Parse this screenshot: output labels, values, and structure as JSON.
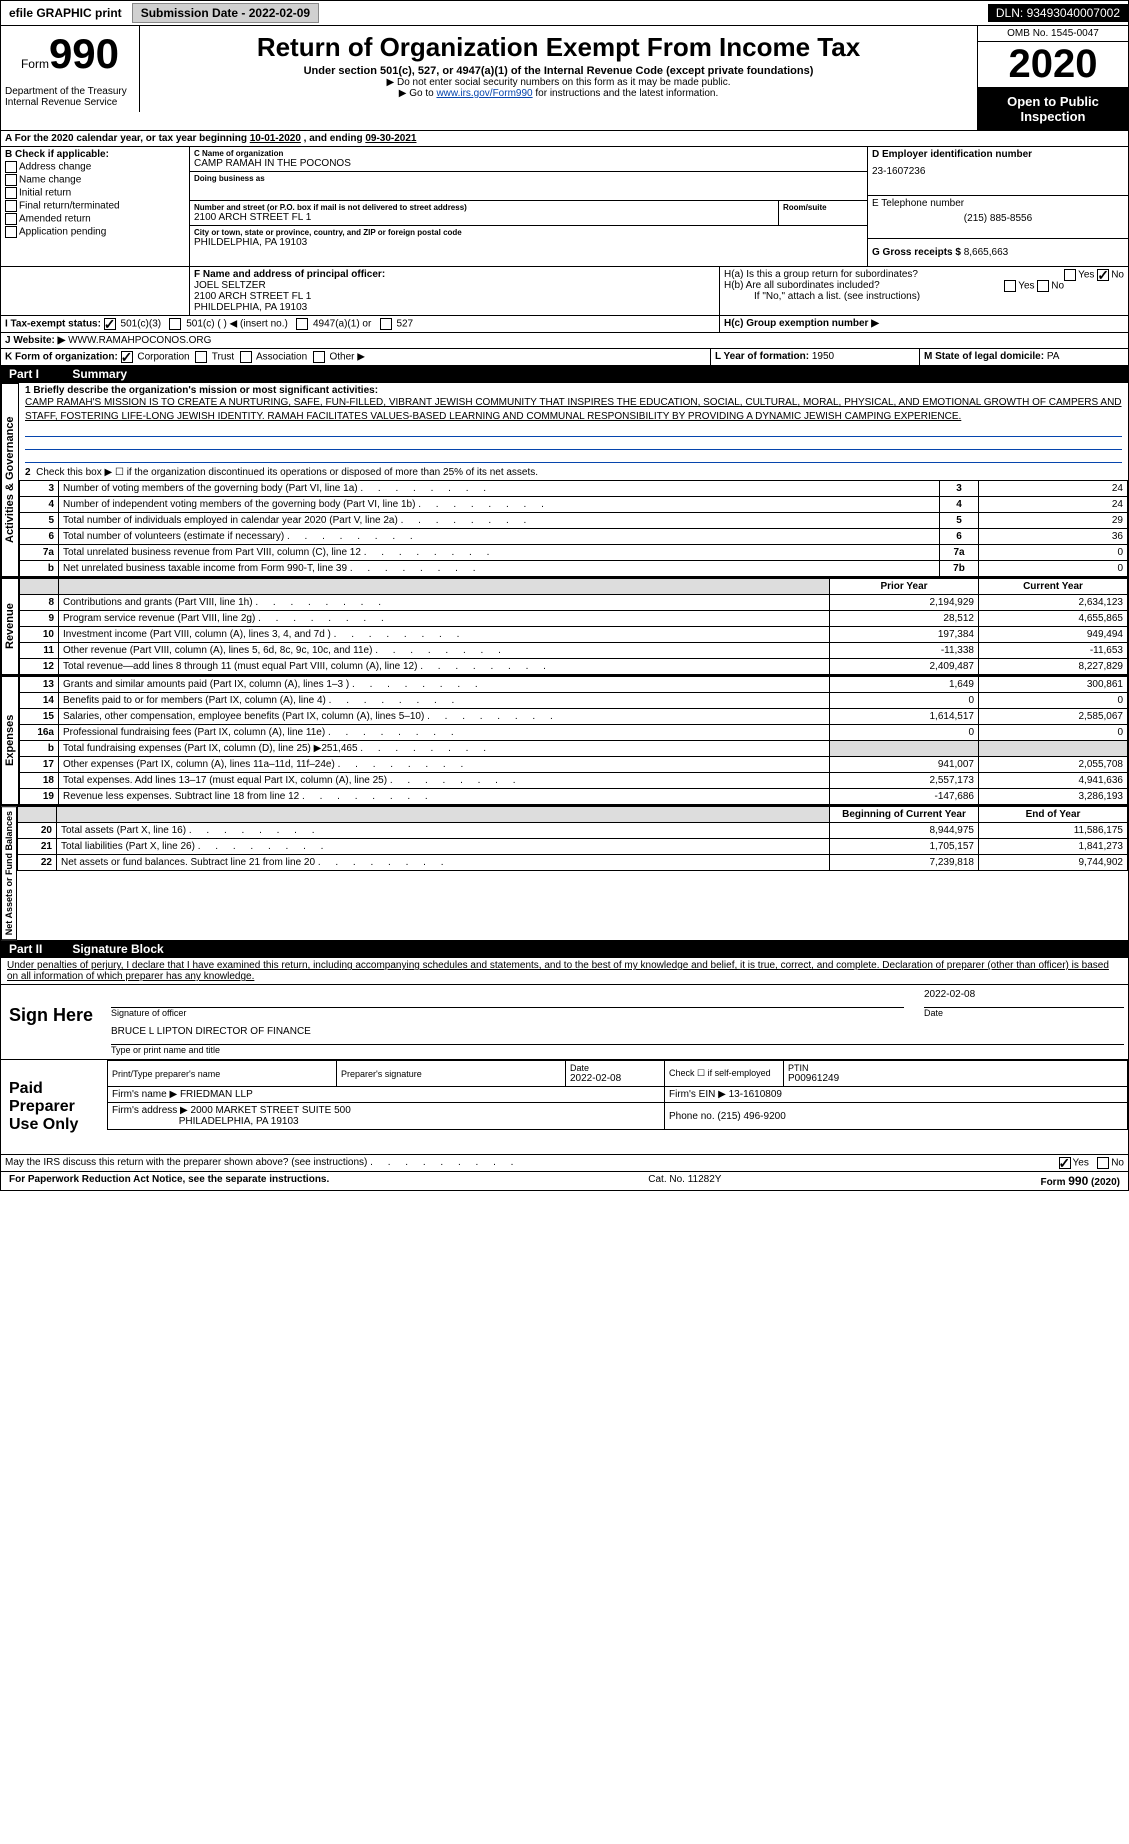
{
  "topbar": {
    "efile": "efile GRAPHIC print",
    "submission_label": "Submission Date - ",
    "submission_date": "2022-02-09",
    "dln_label": "DLN: ",
    "dln": "93493040007002"
  },
  "header": {
    "form_word": "Form",
    "form_num": "990",
    "dept1": "Department of the Treasury",
    "dept2": "Internal Revenue Service",
    "title": "Return of Organization Exempt From Income Tax",
    "subtitle": "Under section 501(c), 527, or 4947(a)(1) of the Internal Revenue Code (except private foundations)",
    "note1": "▶ Do not enter social security numbers on this form as it may be made public.",
    "note2_pre": "▶ Go to ",
    "note2_link": "www.irs.gov/Form990",
    "note2_post": " for instructions and the latest information.",
    "omb": "OMB No. 1545-0047",
    "year": "2020",
    "inspect1": "Open to Public",
    "inspect2": "Inspection"
  },
  "periodA": {
    "text_pre": "A For the 2020 calendar year, or tax year beginning ",
    "begin": "10-01-2020",
    "mid": " , and ending ",
    "end": "09-30-2021"
  },
  "sectionB": {
    "label": "B Check if applicable:",
    "opts": [
      "Address change",
      "Name change",
      "Initial return",
      "Final return/terminated",
      "Amended return",
      "Application pending"
    ]
  },
  "sectionC": {
    "label": "C Name of organization",
    "name": "CAMP RAMAH IN THE POCONOS",
    "dba_label": "Doing business as",
    "dba": "",
    "addr_label": "Number and street (or P.O. box if mail is not delivered to street address)",
    "room_label": "Room/suite",
    "addr": "2100 ARCH STREET FL 1",
    "city_label": "City or town, state or province, country, and ZIP or foreign postal code",
    "city": "PHILDELPHIA, PA  19103"
  },
  "sectionD": {
    "label": "D Employer identification number",
    "value": "23-1607236"
  },
  "sectionE": {
    "label": "E Telephone number",
    "value": "(215) 885-8556"
  },
  "sectionG": {
    "label": "G Gross receipts $ ",
    "value": "8,665,663"
  },
  "sectionF": {
    "label": "F Name and address of principal officer:",
    "name": "JOEL SELTZER",
    "addr1": "2100 ARCH STREET FL 1",
    "addr2": "PHILDELPHIA, PA  19103"
  },
  "sectionH": {
    "a": "H(a)  Is this a group return for subordinates?",
    "b": "H(b)  Are all subordinates included?",
    "bnote": "If \"No,\" attach a list. (see instructions)",
    "c": "H(c)  Group exemption number ▶",
    "yes": "Yes",
    "no": "No"
  },
  "sectionI": {
    "label": "I  Tax-exempt status:",
    "o1": "501(c)(3)",
    "o2": "501(c) (   ) ◀ (insert no.)",
    "o3": "4947(a)(1) or",
    "o4": "527"
  },
  "sectionJ": {
    "label": "J  Website: ▶",
    "value": "WWW.RAMAHPOCONOS.ORG"
  },
  "sectionK": {
    "label": "K Form of organization:",
    "o1": "Corporation",
    "o2": "Trust",
    "o3": "Association",
    "o4": "Other ▶"
  },
  "sectionL": {
    "label": "L Year of formation: ",
    "value": "1950"
  },
  "sectionM": {
    "label": "M State of legal domicile: ",
    "value": "PA"
  },
  "part1": {
    "header_num": "Part I",
    "header_title": "Summary",
    "line1_label": "1  Briefly describe the organization's mission or most significant activities:",
    "mission": "CAMP RAMAH'S MISSION IS TO CREATE A NURTURING, SAFE, FUN-FILLED, VIBRANT JEWISH COMMUNITY THAT INSPIRES THE EDUCATION, SOCIAL, CULTURAL, MORAL, PHYSICAL, AND EMOTIONAL GROWTH OF CAMPERS AND STAFF, FOSTERING LIFE-LONG JEWISH IDENTITY. RAMAH FACILITATES VALUES-BASED LEARNING AND COMMUNAL RESPONSIBILITY BY PROVIDING A DYNAMIC JEWISH CAMPING EXPERIENCE.",
    "vlabel_ag": "Activities & Governance",
    "vlabel_rev": "Revenue",
    "vlabel_exp": "Expenses",
    "vlabel_net": "Net Assets or Fund Balances",
    "line2": "Check this box ▶ ☐ if the organization discontinued its operations or disposed of more than 25% of its net assets.",
    "lines_ag": [
      {
        "n": "3",
        "d": "Number of voting members of the governing body (Part VI, line 1a)",
        "box": "3",
        "v": "24"
      },
      {
        "n": "4",
        "d": "Number of independent voting members of the governing body (Part VI, line 1b)",
        "box": "4",
        "v": "24"
      },
      {
        "n": "5",
        "d": "Total number of individuals employed in calendar year 2020 (Part V, line 2a)",
        "box": "5",
        "v": "29"
      },
      {
        "n": "6",
        "d": "Total number of volunteers (estimate if necessary)",
        "box": "6",
        "v": "36"
      },
      {
        "n": "7a",
        "d": "Total unrelated business revenue from Part VIII, column (C), line 12",
        "box": "7a",
        "v": "0"
      },
      {
        "n": " b",
        "d": "Net unrelated business taxable income from Form 990-T, line 39",
        "box": "7b",
        "v": "0"
      }
    ],
    "py_header": "Prior Year",
    "cy_header": "Current Year",
    "lines_rev": [
      {
        "n": "8",
        "d": "Contributions and grants (Part VIII, line 1h)",
        "py": "2,194,929",
        "cy": "2,634,123"
      },
      {
        "n": "9",
        "d": "Program service revenue (Part VIII, line 2g)",
        "py": "28,512",
        "cy": "4,655,865"
      },
      {
        "n": "10",
        "d": "Investment income (Part VIII, column (A), lines 3, 4, and 7d )",
        "py": "197,384",
        "cy": "949,494"
      },
      {
        "n": "11",
        "d": "Other revenue (Part VIII, column (A), lines 5, 6d, 8c, 9c, 10c, and 11e)",
        "py": "-11,338",
        "cy": "-11,653"
      },
      {
        "n": "12",
        "d": "Total revenue—add lines 8 through 11 (must equal Part VIII, column (A), line 12)",
        "py": "2,409,487",
        "cy": "8,227,829"
      }
    ],
    "lines_exp": [
      {
        "n": "13",
        "d": "Grants and similar amounts paid (Part IX, column (A), lines 1–3 )",
        "py": "1,649",
        "cy": "300,861"
      },
      {
        "n": "14",
        "d": "Benefits paid to or for members (Part IX, column (A), line 4)",
        "py": "0",
        "cy": "0"
      },
      {
        "n": "15",
        "d": "Salaries, other compensation, employee benefits (Part IX, column (A), lines 5–10)",
        "py": "1,614,517",
        "cy": "2,585,067"
      },
      {
        "n": "16a",
        "d": "Professional fundraising fees (Part IX, column (A), line 11e)",
        "py": "0",
        "cy": "0"
      },
      {
        "n": "  b",
        "d": "Total fundraising expenses (Part IX, column (D), line 25) ▶251,465",
        "py": "",
        "cy": ""
      },
      {
        "n": "17",
        "d": "Other expenses (Part IX, column (A), lines 11a–11d, 11f–24e)",
        "py": "941,007",
        "cy": "2,055,708"
      },
      {
        "n": "18",
        "d": "Total expenses. Add lines 13–17 (must equal Part IX, column (A), line 25)",
        "py": "2,557,173",
        "cy": "4,941,636"
      },
      {
        "n": "19",
        "d": "Revenue less expenses. Subtract line 18 from line 12",
        "py": "-147,686",
        "cy": "3,286,193"
      }
    ],
    "boy_header": "Beginning of Current Year",
    "eoy_header": "End of Year",
    "lines_net": [
      {
        "n": "20",
        "d": "Total assets (Part X, line 16)",
        "py": "8,944,975",
        "cy": "11,586,175"
      },
      {
        "n": "21",
        "d": "Total liabilities (Part X, line 26)",
        "py": "1,705,157",
        "cy": "1,841,273"
      },
      {
        "n": "22",
        "d": "Net assets or fund balances. Subtract line 21 from line 20",
        "py": "7,239,818",
        "cy": "9,744,902"
      }
    ]
  },
  "part2": {
    "header_num": "Part II",
    "header_title": "Signature Block",
    "penalties": "Under penalties of perjury, I declare that I have examined this return, including accompanying schedules and statements, and to the best of my knowledge and belief, it is true, correct, and complete. Declaration of preparer (other than officer) is based on all information of which preparer has any knowledge.",
    "sign_here": "Sign Here",
    "sig_officer": "Signature of officer",
    "sig_date": "Date",
    "sig_date_val": "2022-02-08",
    "officer_name": "BRUCE L LIPTON  DIRECTOR OF FINANCE",
    "type_name": "Type or print name and title",
    "paid_prep": "Paid Preparer Use Only",
    "prep_name_label": "Print/Type preparer's name",
    "prep_sig_label": "Preparer's signature",
    "prep_date_label": "Date",
    "prep_date": "2022-02-08",
    "self_emp": "Check ☐ if self-employed",
    "ptin_label": "PTIN",
    "ptin": "P00961249",
    "firm_name_label": "Firm's name   ▶ ",
    "firm_name": "FRIEDMAN LLP",
    "firm_ein_label": "Firm's EIN ▶ ",
    "firm_ein": "13-1610809",
    "firm_addr_label": "Firm's address ▶ ",
    "firm_addr1": "2000 MARKET STREET SUITE 500",
    "firm_addr2": "PHILADELPHIA, PA  19103",
    "firm_phone_label": "Phone no. ",
    "firm_phone": "(215) 496-9200",
    "discuss": "May the IRS discuss this return with the preparer shown above? (see instructions)",
    "yes": "Yes",
    "no": "No"
  },
  "footer": {
    "left": "For Paperwork Reduction Act Notice, see the separate instructions.",
    "mid": "Cat. No. 11282Y",
    "right": "Form 990 (2020)"
  }
}
